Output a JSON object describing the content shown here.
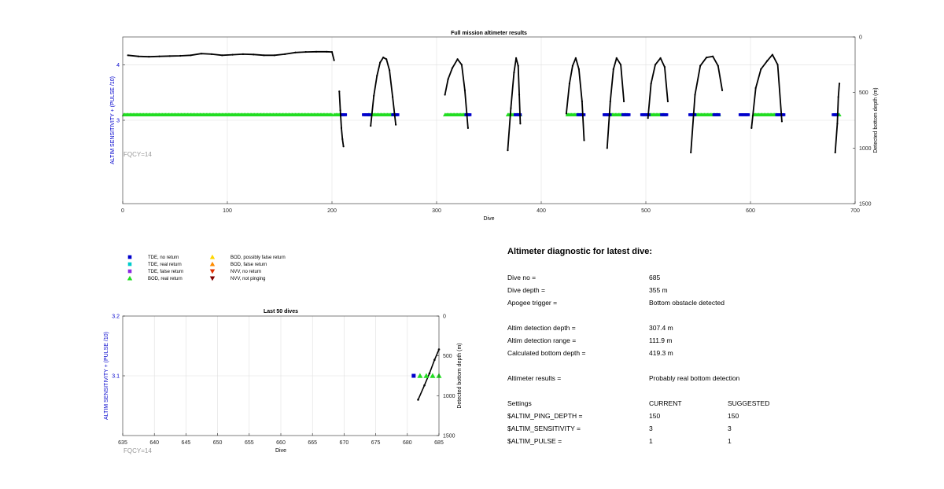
{
  "chart_data": [
    {
      "type": "scatter",
      "title": "Full mission altimeter results",
      "xlabel": "Dive",
      "ylabel_left": "ALTIM SENSITIVITY + (PULSE /10)",
      "ylabel_right": "Detected bottom depth (m)",
      "xlim": [
        0,
        700
      ],
      "xticks": [
        0,
        100,
        200,
        300,
        400,
        500,
        600,
        700
      ],
      "ylim_left": [
        1.5,
        4.5
      ],
      "yticks_left": [
        3,
        4
      ],
      "ylim_right": [
        0,
        1500
      ],
      "yticks_right": [
        0,
        500,
        1000,
        1500
      ],
      "grid": true,
      "annotation": "FQCY=14",
      "settings_level": 3.1,
      "bod_real_return_ranges": [
        [
          1,
          200
        ],
        [
          202,
          208
        ],
        [
          235,
          260
        ],
        [
          308,
          330
        ],
        [
          368,
          380
        ],
        [
          425,
          438
        ],
        [
          465,
          482
        ],
        [
          502,
          518
        ],
        [
          545,
          570
        ],
        [
          603,
          625
        ],
        [
          682,
          685
        ]
      ],
      "tde_no_return_ranges": [
        [
          209,
          213
        ],
        [
          230,
          236
        ],
        [
          258,
          263
        ],
        [
          328,
          332
        ],
        [
          375,
          380
        ],
        [
          435,
          441
        ],
        [
          460,
          466
        ],
        [
          478,
          484
        ],
        [
          496,
          503
        ],
        [
          515,
          520
        ],
        [
          542,
          547
        ],
        [
          565,
          570
        ],
        [
          590,
          598
        ],
        [
          625,
          632
        ],
        [
          679,
          683
        ]
      ],
      "bottom_depth_series": [
        {
          "x": [
            5,
            15,
            25,
            35,
            45,
            55,
            65,
            75,
            85,
            95,
            105,
            115,
            125,
            135,
            145,
            155,
            165,
            175,
            185,
            195,
            200,
            202
          ],
          "y": [
            165,
            175,
            178,
            175,
            172,
            170,
            165,
            150,
            155,
            165,
            160,
            155,
            158,
            165,
            165,
            155,
            140,
            135,
            133,
            133,
            135,
            210
          ]
        },
        {
          "x": [
            207,
            208,
            209,
            210,
            211
          ],
          "y": [
            490,
            660,
            820,
            920,
            985
          ]
        },
        {
          "x": [
            237,
            240,
            243,
            246,
            249,
            252,
            255,
            258,
            261
          ],
          "y": [
            800,
            530,
            350,
            230,
            185,
            200,
            300,
            540,
            790
          ]
        },
        {
          "x": [
            308,
            311,
            315,
            320,
            324,
            327,
            330
          ],
          "y": [
            520,
            380,
            280,
            200,
            250,
            480,
            820
          ]
        },
        {
          "x": [
            368,
            371,
            374,
            376,
            378,
            379,
            380
          ],
          "y": [
            1020,
            640,
            320,
            190,
            260,
            520,
            780
          ]
        },
        {
          "x": [
            424,
            427,
            430,
            433,
            436,
            439,
            441
          ],
          "y": [
            690,
            420,
            260,
            190,
            290,
            580,
            930
          ]
        },
        {
          "x": [
            463,
            466,
            469,
            472,
            476,
            479
          ],
          "y": [
            1000,
            580,
            290,
            190,
            250,
            580
          ]
        },
        {
          "x": [
            502,
            505,
            509,
            514,
            518,
            521
          ],
          "y": [
            730,
            420,
            250,
            190,
            270,
            580
          ]
        },
        {
          "x": [
            543,
            547,
            552,
            558,
            564,
            569,
            573
          ],
          "y": [
            1040,
            520,
            260,
            185,
            175,
            260,
            480
          ]
        },
        {
          "x": [
            601,
            605,
            610,
            616,
            621,
            626,
            630
          ],
          "y": [
            820,
            460,
            290,
            215,
            160,
            250,
            760
          ]
        },
        {
          "x": [
            681,
            683,
            684,
            685
          ],
          "y": [
            1040,
            780,
            540,
            419
          ]
        }
      ]
    },
    {
      "type": "scatter",
      "title": "Last 50 dives",
      "xlabel": "Dive",
      "ylabel_left": "ALTIM SENSITIVITY + (PULSE /10)",
      "ylabel_right": "Detected bottom depth (m)",
      "xlim": [
        635,
        685
      ],
      "xticks": [
        635,
        640,
        645,
        650,
        655,
        660,
        665,
        670,
        675,
        680,
        685
      ],
      "ylim_left": [
        3.0,
        3.2
      ],
      "yticks_left": [
        3.1,
        3.2
      ],
      "ylim_right": [
        0,
        1500
      ],
      "yticks_right": [
        0,
        500,
        1000,
        1500
      ],
      "grid": true,
      "annotation": "FQCY=14",
      "tde_no_return_x": [
        681
      ],
      "bod_real_return_x": [
        682,
        683,
        684,
        685
      ],
      "marker_level": 3.1,
      "bottom_depth_series": [
        {
          "x": [
            681.7,
            682.7,
            683.5,
            684.3,
            685
          ],
          "y": [
            1050,
            870,
            720,
            550,
            419
          ]
        }
      ]
    }
  ],
  "legend": {
    "left_col": [
      {
        "label": "TDE, no return",
        "color": "#0000cc",
        "marker": "square"
      },
      {
        "label": "TDE, real return",
        "color": "#00cccc",
        "marker": "square"
      },
      {
        "label": "TDE, false return",
        "color": "#8a2be2",
        "marker": "square"
      },
      {
        "label": "BOD, real return",
        "color": "#22dd22",
        "marker": "triangle-up"
      }
    ],
    "right_col": [
      {
        "label": "BOD, possibly false return",
        "color": "#ffd700",
        "marker": "triangle-up"
      },
      {
        "label": "BOD, false return",
        "color": "#ff8c00",
        "marker": "triangle-up"
      },
      {
        "label": "NVV, no return",
        "color": "#e03000",
        "marker": "triangle-down"
      },
      {
        "label": "NVV, not pinging",
        "color": "#800000",
        "marker": "triangle-down"
      }
    ]
  },
  "diagnostic": {
    "title": "Altimeter diagnostic for latest dive:",
    "rows": [
      {
        "label": "Dive no =",
        "value": "685"
      },
      {
        "label": "Dive depth =",
        "value": "355 m"
      },
      {
        "label": "Apogee trigger =",
        "value": "Bottom obstacle detected"
      },
      {
        "label": "Altim detection depth =",
        "value": "307.4 m"
      },
      {
        "label": "Altim detection range =",
        "value": "111.9 m"
      },
      {
        "label": "Calculated bottom depth =",
        "value": "419.3 m"
      },
      {
        "label": "Altimeter results =",
        "value": "Probably real bottom detection"
      }
    ],
    "settings": {
      "header": {
        "label": "Settings",
        "current": "CURRENT",
        "suggested": "SUGGESTED"
      },
      "rows": [
        {
          "label": "$ALTIM_PING_DEPTH =",
          "current": "150",
          "suggested": "150"
        },
        {
          "label": "$ALTIM_SENSITIVITY =",
          "current": "3",
          "suggested": "3"
        },
        {
          "label": "$ALTIM_PULSE =",
          "current": "1",
          "suggested": "1"
        }
      ]
    }
  },
  "colors": {
    "axis": "#262626",
    "grid": "#dfdfdf",
    "left_axis_label": "#0000cc",
    "annotation": "#999999",
    "bod_real_return": "#22dd22",
    "tde_no_return": "#0000cc",
    "depth_line": "#000000"
  }
}
